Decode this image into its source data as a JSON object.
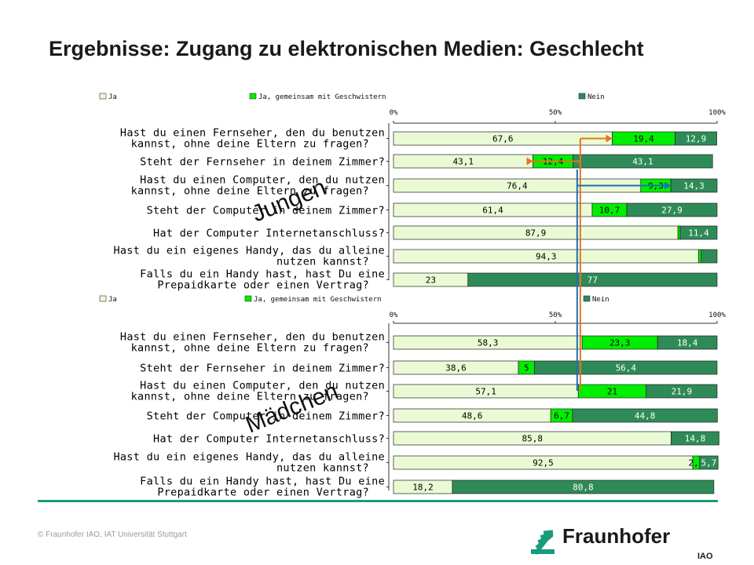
{
  "page": {
    "title": "Ergebnisse: Zugang zu elektronischen Medien: Geschlecht",
    "copyright": "© Fraunhofer IAO, IAT Universität Stuttgart",
    "logo_name": "Fraunhofer",
    "logo_sub": "IAO"
  },
  "colors": {
    "ja": "#eafad5",
    "geschwister": "#00ee00",
    "nein": "#2e8b57",
    "footer_rule": "#179c7d",
    "arrow_orange": "#e8741e",
    "arrow_blue": "#1f6fb5",
    "logo_green": "#179c7d"
  },
  "annotations": {
    "jungen": "Jungen",
    "maedchen": "Mädchen",
    "arrow_orange_at_percent": 57,
    "arrow_blue_at_percent": 57,
    "arrow_orange_targets": [
      0,
      1
    ],
    "arrow_blue_targets": [
      2
    ]
  },
  "chart_data": [
    {
      "type": "bar",
      "stacked": true,
      "orientation": "horizontal",
      "group": "Jungen",
      "legend": [
        "Ja",
        "Ja, gemeinsam mit Geschwistern",
        "Nein"
      ],
      "axis_ticks": [
        "0%",
        "50%",
        "100%"
      ],
      "xlim": [
        0,
        100
      ],
      "categories": [
        [
          "Hast du einen Fernseher, den du benutzen",
          "kannst, ohne deine Eltern zu fragen?"
        ],
        [
          "Steht der Fernseher in deinem Zimmer?"
        ],
        [
          "Hast du einen Computer, den du nutzen",
          "kannst, ohne deine Eltern zu fragen?"
        ],
        [
          "Steht der Computer in deinem Zimmer?"
        ],
        [
          "Hat der Computer Internetanschluss?"
        ],
        [
          "Hast du ein eigenes Handy, das du alleine",
          "nutzen kannst?"
        ],
        [
          "Falls du ein Handy hast, hast Du eine",
          "Prepaidkarte oder einen Vertrag?"
        ]
      ],
      "series": [
        {
          "name": "Ja",
          "values": [
            67.6,
            43.1,
            76.4,
            61.4,
            87.9,
            94.3,
            23
          ],
          "labels": [
            "67,6",
            "43,1",
            "76,4",
            "61,4",
            "87,9",
            "94,3",
            "23"
          ]
        },
        {
          "name": "Ja, gemeinsam mit Geschwistern",
          "values": [
            19.4,
            12.4,
            9.3,
            10.7,
            0.7,
            0.8,
            0
          ],
          "labels": [
            "19,4",
            "12,4",
            "9,3",
            "10,7",
            "",
            "",
            ""
          ]
        },
        {
          "name": "Nein",
          "values": [
            12.9,
            43.1,
            14.3,
            27.9,
            11.4,
            4.9,
            77
          ],
          "labels": [
            "12,9",
            "43,1",
            "14,3",
            "27,9",
            "11,4",
            "",
            "77"
          ]
        }
      ]
    },
    {
      "type": "bar",
      "stacked": true,
      "orientation": "horizontal",
      "group": "Mädchen",
      "legend": [
        "Ja",
        "Ja, gemeinsam mit Geschwistern",
        "Nein"
      ],
      "axis_ticks": [
        "0%",
        "50%",
        "100%"
      ],
      "xlim": [
        0,
        100
      ],
      "categories": [
        [
          "Hast du einen Fernseher, den du benutzen",
          "kannst, ohne deine Eltern zu fragen?"
        ],
        [
          "Steht der Fernseher in deinem Zimmer?"
        ],
        [
          "Hast du einen Computer, den du nutzen",
          "kannst, ohne deine Eltern zu fragen?"
        ],
        [
          "Steht der Computer in deinem Zimmer?"
        ],
        [
          "Hat der Computer Internetanschluss?"
        ],
        [
          "Hast du ein eigenes Handy, das du alleine",
          "nutzen kannst?"
        ],
        [
          "Falls du ein Handy hast, hast Du eine",
          "Prepaidkarte oder einen Vertrag?"
        ]
      ],
      "series": [
        {
          "name": "Ja",
          "values": [
            58.3,
            38.6,
            57.1,
            48.6,
            85.8,
            92.5,
            18.2
          ],
          "labels": [
            "58,3",
            "38,6",
            "57,1",
            "48,6",
            "85,8",
            "92,5",
            "18,2"
          ]
        },
        {
          "name": "Ja, gemeinsam mit Geschwistern",
          "values": [
            23.3,
            5,
            21,
            6.7,
            0,
            2.1,
            0
          ],
          "labels": [
            "23,3",
            "5",
            "21",
            "6,7",
            "",
            "2,1",
            ""
          ]
        },
        {
          "name": "Nein",
          "values": [
            18.4,
            56.4,
            21.9,
            44.8,
            14.8,
            5.7,
            80.8
          ],
          "labels": [
            "18,4",
            "56,4",
            "21,9",
            "44,8",
            "14,8",
            "5,7",
            "80,8"
          ]
        }
      ]
    }
  ]
}
